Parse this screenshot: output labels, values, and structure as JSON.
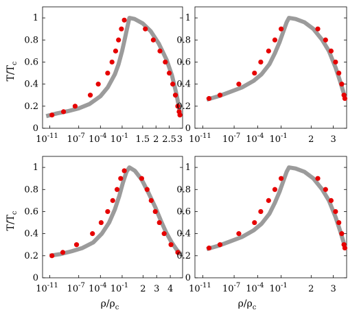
{
  "figure": {
    "ylabel_main": "T/T",
    "ylabel_sub": "c",
    "xlabel_main": "ρ/ρ",
    "xlabel_sub": "c"
  },
  "colors": {
    "curve": "#9b9b9b",
    "marker": "#e60000",
    "axis": "#000000"
  },
  "chart_data": [
    {
      "type": "line",
      "position": "top-left",
      "ylabel": "T/Tc",
      "xlabel": "",
      "ylim": [
        0,
        1.1
      ],
      "yticks": [
        0,
        0.2,
        0.4,
        0.6,
        0.8,
        1
      ],
      "yticklabels": [
        "0",
        "0.2",
        "0.4",
        "0.6",
        "0.8",
        "1"
      ],
      "xticks_left": [
        {
          "log10": -11,
          "label": "10",
          "exp": "-11"
        },
        {
          "log10": -7,
          "label": "10",
          "exp": "-7"
        },
        {
          "log10": -4,
          "label": "10",
          "exp": "-4"
        },
        {
          "log10": -1,
          "label": "10",
          "exp": "-1"
        }
      ],
      "xticks_right": [
        {
          "value": 1.5,
          "label": "1.5"
        },
        {
          "value": 2,
          "label": "2"
        },
        {
          "value": 2.5,
          "label": "2.5"
        }
      ],
      "rho_peak": 1.0,
      "rho_max": 3.0,
      "xmax_label": "3",
      "left_curve": [
        [
          -11.5,
          0.11
        ],
        [
          -10,
          0.135
        ],
        [
          -8.5,
          0.155
        ],
        [
          -7,
          0.18
        ],
        [
          -5.5,
          0.22
        ],
        [
          -4,
          0.29
        ],
        [
          -3,
          0.37
        ],
        [
          -2,
          0.49
        ],
        [
          -1.5,
          0.58
        ],
        [
          -1,
          0.7
        ],
        [
          -0.6,
          0.82
        ],
        [
          -0.3,
          0.91
        ],
        [
          0,
          1.0
        ]
      ],
      "right_curve": [
        [
          1.0,
          1.0
        ],
        [
          1.2,
          0.99
        ],
        [
          1.5,
          0.95
        ],
        [
          1.8,
          0.88
        ],
        [
          2.1,
          0.77
        ],
        [
          2.4,
          0.62
        ],
        [
          2.6,
          0.48
        ],
        [
          2.75,
          0.33
        ],
        [
          2.85,
          0.21
        ],
        [
          2.9,
          0.13
        ]
      ],
      "markers": [
        {
          "side": "left",
          "x": -10.7,
          "y": 0.12
        },
        {
          "side": "left",
          "x": -9.1,
          "y": 0.15
        },
        {
          "side": "left",
          "x": -7.5,
          "y": 0.2
        },
        {
          "side": "left",
          "x": -5.4,
          "y": 0.3
        },
        {
          "side": "left",
          "x": -4.3,
          "y": 0.4
        },
        {
          "side": "left",
          "x": -3.0,
          "y": 0.5
        },
        {
          "side": "left",
          "x": -2.4,
          "y": 0.6
        },
        {
          "side": "left",
          "x": -1.9,
          "y": 0.7
        },
        {
          "side": "left",
          "x": -1.5,
          "y": 0.8
        },
        {
          "side": "left",
          "x": -1.1,
          "y": 0.9
        },
        {
          "side": "left",
          "x": -0.7,
          "y": 0.98
        },
        {
          "side": "right",
          "x": 1.6,
          "y": 0.9
        },
        {
          "side": "right",
          "x": 1.9,
          "y": 0.8
        },
        {
          "side": "right",
          "x": 2.15,
          "y": 0.7
        },
        {
          "side": "right",
          "x": 2.35,
          "y": 0.6
        },
        {
          "side": "right",
          "x": 2.5,
          "y": 0.5
        },
        {
          "side": "right",
          "x": 2.63,
          "y": 0.4
        },
        {
          "side": "right",
          "x": 2.73,
          "y": 0.3
        },
        {
          "side": "right",
          "x": 2.82,
          "y": 0.2
        },
        {
          "side": "right",
          "x": 2.87,
          "y": 0.15
        },
        {
          "side": "right",
          "x": 2.9,
          "y": 0.12
        }
      ]
    },
    {
      "type": "line",
      "position": "top-right",
      "ylabel": "",
      "xlabel": "",
      "ylim": [
        0,
        1.1
      ],
      "yticks": [
        0,
        0.2,
        0.4,
        0.6,
        0.8,
        1
      ],
      "yticklabels": [
        "0",
        "0.2",
        "0.4",
        "0.6",
        "0.8",
        "1"
      ],
      "xticks_left": [
        {
          "log10": -11,
          "label": "10",
          "exp": "-11"
        },
        {
          "log10": -7,
          "label": "10",
          "exp": "-7"
        },
        {
          "log10": -4,
          "label": "10",
          "exp": "-4"
        },
        {
          "log10": -1,
          "label": "10",
          "exp": "-1"
        }
      ],
      "xticks_right": [
        {
          "value": 2,
          "label": "2"
        },
        {
          "value": 3,
          "label": "3"
        }
      ],
      "rho_peak": 1.0,
      "rho_max": 3.6,
      "xmax_label": "",
      "left_curve": [
        [
          -10.5,
          0.26
        ],
        [
          -9,
          0.29
        ],
        [
          -7.5,
          0.33
        ],
        [
          -6,
          0.37
        ],
        [
          -4.5,
          0.43
        ],
        [
          -3.5,
          0.49
        ],
        [
          -2.5,
          0.58
        ],
        [
          -1.8,
          0.68
        ],
        [
          -1.2,
          0.78
        ],
        [
          -0.7,
          0.88
        ],
        [
          -0.3,
          0.96
        ],
        [
          0,
          1.0
        ]
      ],
      "right_curve": [
        [
          1.0,
          1.0
        ],
        [
          1.3,
          0.99
        ],
        [
          1.7,
          0.96
        ],
        [
          2.1,
          0.9
        ],
        [
          2.5,
          0.8
        ],
        [
          2.8,
          0.7
        ],
        [
          3.1,
          0.55
        ],
        [
          3.3,
          0.43
        ],
        [
          3.45,
          0.33
        ],
        [
          3.55,
          0.26
        ]
      ],
      "markers": [
        {
          "side": "left",
          "x": -10.2,
          "y": 0.27
        },
        {
          "side": "left",
          "x": -8.8,
          "y": 0.3
        },
        {
          "side": "left",
          "x": -6.4,
          "y": 0.4
        },
        {
          "side": "left",
          "x": -4.4,
          "y": 0.5
        },
        {
          "side": "left",
          "x": -3.6,
          "y": 0.6
        },
        {
          "side": "left",
          "x": -2.6,
          "y": 0.7
        },
        {
          "side": "left",
          "x": -1.8,
          "y": 0.8
        },
        {
          "side": "left",
          "x": -1.0,
          "y": 0.9
        },
        {
          "side": "right",
          "x": 2.3,
          "y": 0.9
        },
        {
          "side": "right",
          "x": 2.65,
          "y": 0.8
        },
        {
          "side": "right",
          "x": 2.9,
          "y": 0.7
        },
        {
          "side": "right",
          "x": 3.1,
          "y": 0.6
        },
        {
          "side": "right",
          "x": 3.25,
          "y": 0.5
        },
        {
          "side": "right",
          "x": 3.38,
          "y": 0.4
        },
        {
          "side": "right",
          "x": 3.48,
          "y": 0.3
        },
        {
          "side": "right",
          "x": 3.52,
          "y": 0.27
        }
      ]
    },
    {
      "type": "line",
      "position": "bottom-left",
      "ylabel": "T/Tc",
      "xlabel": "ρ/ρc",
      "ylim": [
        0,
        1.1
      ],
      "yticks": [
        0,
        0.2,
        0.4,
        0.6,
        0.8,
        1
      ],
      "yticklabels": [
        "0",
        "0.2",
        "0.4",
        "0.6",
        "0.8",
        "1"
      ],
      "xticks_left": [
        {
          "log10": -11,
          "label": "10",
          "exp": "-11"
        },
        {
          "log10": -7,
          "label": "10",
          "exp": "-7"
        },
        {
          "log10": -4,
          "label": "10",
          "exp": "-4"
        },
        {
          "log10": -1,
          "label": "10",
          "exp": "-1"
        }
      ],
      "xticks_right": [
        {
          "value": 2,
          "label": "2"
        },
        {
          "value": 3,
          "label": "3"
        },
        {
          "value": 4,
          "label": "4"
        }
      ],
      "rho_peak": 1.0,
      "rho_max": 4.9,
      "xmax_label": "",
      "left_curve": [
        [
          -11,
          0.2
        ],
        [
          -9.5,
          0.215
        ],
        [
          -8,
          0.24
        ],
        [
          -6.5,
          0.27
        ],
        [
          -5,
          0.32
        ],
        [
          -3.8,
          0.4
        ],
        [
          -2.8,
          0.5
        ],
        [
          -2.0,
          0.62
        ],
        [
          -1.4,
          0.74
        ],
        [
          -0.9,
          0.86
        ],
        [
          -0.4,
          0.96
        ],
        [
          0,
          1.0
        ]
      ],
      "right_curve": [
        [
          1.0,
          1.0
        ],
        [
          1.4,
          0.97
        ],
        [
          1.9,
          0.89
        ],
        [
          2.4,
          0.77
        ],
        [
          2.9,
          0.64
        ],
        [
          3.3,
          0.52
        ],
        [
          3.7,
          0.41
        ],
        [
          4.1,
          0.32
        ],
        [
          4.5,
          0.25
        ],
        [
          4.8,
          0.21
        ]
      ],
      "markers": [
        {
          "side": "left",
          "x": -10.7,
          "y": 0.2
        },
        {
          "side": "left",
          "x": -9.2,
          "y": 0.23
        },
        {
          "side": "left",
          "x": -7.3,
          "y": 0.3
        },
        {
          "side": "left",
          "x": -5.1,
          "y": 0.4
        },
        {
          "side": "left",
          "x": -3.9,
          "y": 0.5
        },
        {
          "side": "left",
          "x": -3.0,
          "y": 0.6
        },
        {
          "side": "left",
          "x": -2.3,
          "y": 0.7
        },
        {
          "side": "left",
          "x": -1.7,
          "y": 0.8
        },
        {
          "side": "left",
          "x": -1.2,
          "y": 0.9
        },
        {
          "side": "left",
          "x": -0.7,
          "y": 0.97
        },
        {
          "side": "right",
          "x": 1.9,
          "y": 0.9
        },
        {
          "side": "right",
          "x": 2.3,
          "y": 0.8
        },
        {
          "side": "right",
          "x": 2.6,
          "y": 0.7
        },
        {
          "side": "right",
          "x": 2.9,
          "y": 0.6
        },
        {
          "side": "right",
          "x": 3.2,
          "y": 0.5
        },
        {
          "side": "right",
          "x": 3.55,
          "y": 0.4
        },
        {
          "side": "right",
          "x": 4.05,
          "y": 0.3
        },
        {
          "side": "right",
          "x": 4.55,
          "y": 0.23
        }
      ]
    },
    {
      "type": "line",
      "position": "bottom-right",
      "ylabel": "",
      "xlabel": "ρ/ρc",
      "ylim": [
        0,
        1.1
      ],
      "yticks": [
        0,
        0.2,
        0.4,
        0.6,
        0.8,
        1
      ],
      "yticklabels": [
        "0",
        "0.2",
        "0.4",
        "0.6",
        "0.8",
        "1"
      ],
      "xticks_left": [
        {
          "log10": -11,
          "label": "10",
          "exp": "-11"
        },
        {
          "log10": -7,
          "label": "10",
          "exp": "-7"
        },
        {
          "log10": -4,
          "label": "10",
          "exp": "-4"
        },
        {
          "log10": -1,
          "label": "10",
          "exp": "-1"
        }
      ],
      "xticks_right": [
        {
          "value": 2,
          "label": "2"
        },
        {
          "value": 3,
          "label": "3"
        }
      ],
      "rho_peak": 1.0,
      "rho_max": 3.6,
      "xmax_label": "",
      "left_curve": [
        [
          -10.5,
          0.26
        ],
        [
          -9,
          0.29
        ],
        [
          -7.5,
          0.33
        ],
        [
          -6,
          0.37
        ],
        [
          -4.5,
          0.43
        ],
        [
          -3.5,
          0.49
        ],
        [
          -2.5,
          0.58
        ],
        [
          -1.8,
          0.68
        ],
        [
          -1.2,
          0.78
        ],
        [
          -0.7,
          0.88
        ],
        [
          -0.3,
          0.96
        ],
        [
          0,
          1.0
        ]
      ],
      "right_curve": [
        [
          1.0,
          1.0
        ],
        [
          1.3,
          0.99
        ],
        [
          1.7,
          0.96
        ],
        [
          2.1,
          0.9
        ],
        [
          2.5,
          0.8
        ],
        [
          2.8,
          0.7
        ],
        [
          3.1,
          0.55
        ],
        [
          3.3,
          0.43
        ],
        [
          3.45,
          0.33
        ],
        [
          3.55,
          0.26
        ]
      ],
      "markers": [
        {
          "side": "left",
          "x": -10.2,
          "y": 0.27
        },
        {
          "side": "left",
          "x": -8.8,
          "y": 0.3
        },
        {
          "side": "left",
          "x": -6.4,
          "y": 0.4
        },
        {
          "side": "left",
          "x": -4.4,
          "y": 0.5
        },
        {
          "side": "left",
          "x": -3.6,
          "y": 0.6
        },
        {
          "side": "left",
          "x": -2.6,
          "y": 0.7
        },
        {
          "side": "left",
          "x": -1.8,
          "y": 0.8
        },
        {
          "side": "left",
          "x": -1.0,
          "y": 0.9
        },
        {
          "side": "right",
          "x": 2.3,
          "y": 0.9
        },
        {
          "side": "right",
          "x": 2.65,
          "y": 0.8
        },
        {
          "side": "right",
          "x": 2.9,
          "y": 0.7
        },
        {
          "side": "right",
          "x": 3.1,
          "y": 0.6
        },
        {
          "side": "right",
          "x": 3.25,
          "y": 0.5
        },
        {
          "side": "right",
          "x": 3.38,
          "y": 0.4
        },
        {
          "side": "right",
          "x": 3.48,
          "y": 0.3
        },
        {
          "side": "right",
          "x": 3.52,
          "y": 0.27
        }
      ]
    }
  ]
}
